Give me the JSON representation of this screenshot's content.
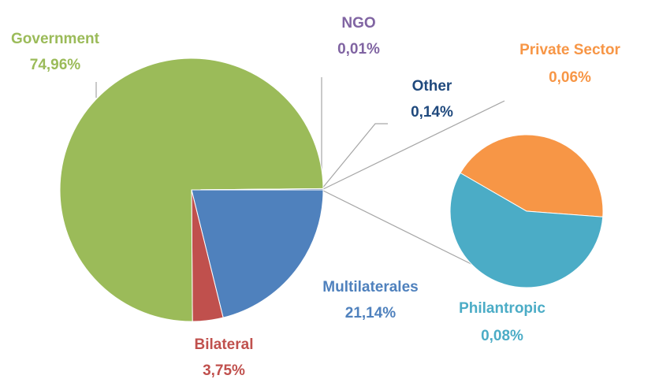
{
  "chart_data": {
    "type": "pie-of-pie",
    "categories": [
      "Multilaterales",
      "Bilateral",
      "Government",
      "NGO",
      "Other"
    ],
    "values": [
      21.14,
      3.75,
      74.96,
      0.01,
      0.14
    ],
    "value_labels": [
      "21,14%",
      "3,75%",
      "74,96%",
      "0,01%",
      "0,14%"
    ],
    "colors": [
      "#4f81bd",
      "#c0504d",
      "#9bbb59",
      "#8064a2",
      "#1f497d"
    ],
    "secondary": {
      "categories": [
        "Private Sector",
        "Philantropic"
      ],
      "values": [
        0.06,
        0.08
      ],
      "value_labels": [
        "0,06%",
        "0,08%"
      ],
      "colors": [
        "#f79646",
        "#4bacc6"
      ]
    }
  }
}
